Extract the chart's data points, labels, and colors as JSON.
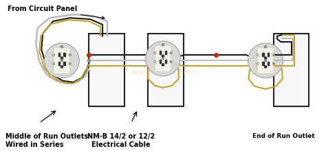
{
  "bg_color": "#ffffff",
  "labels": {
    "from_panel": "From Circuit Panel",
    "middle_outlets": "Middle of Run Outlets\nWired in Series",
    "cable": "NM-B 14/2 or 12/2\nElectrical Cable",
    "end_outlet": "End of Run Outlet"
  },
  "wire_black": "#1a1a1a",
  "wire_white": "#bbbbbb",
  "wire_bare": "#c8a020",
  "wire_red": "#cc2200",
  "outlet_outer": "#e0e0e0",
  "outlet_face": "#f5f5f0",
  "outlet_face2": "#e8e4d0",
  "box_color": "#222222",
  "box_fill": "#f8f8f8",
  "label_fs": 7.0,
  "watermark": "www.how-to-wire-it.com"
}
